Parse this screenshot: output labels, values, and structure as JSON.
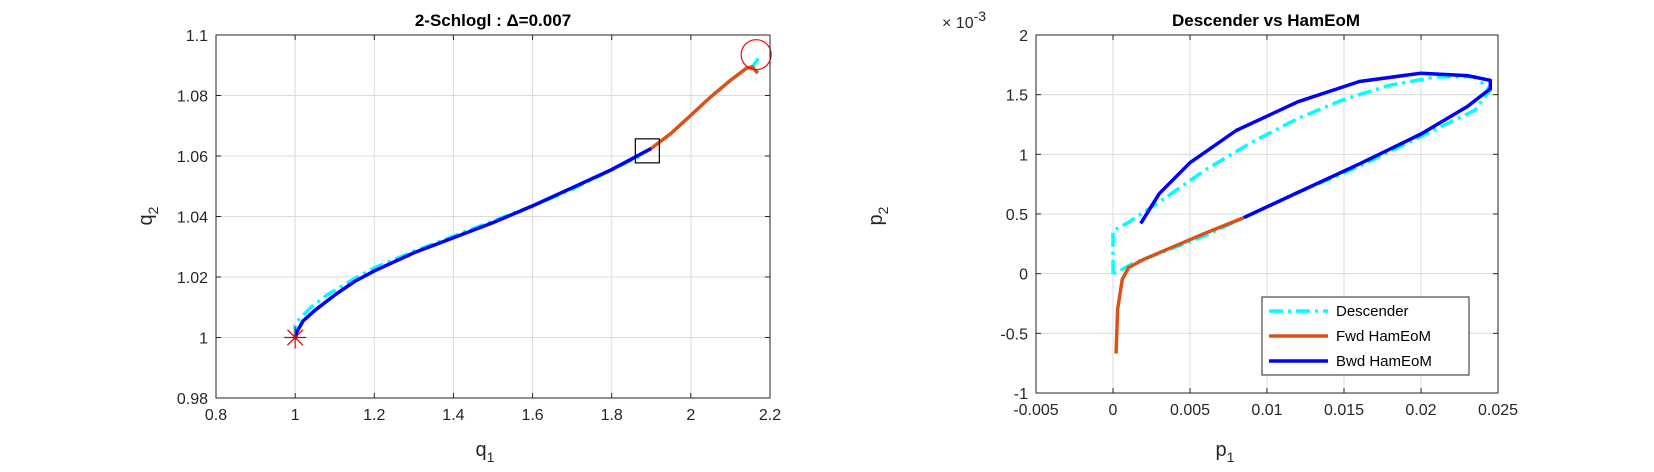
{
  "chart_data": [
    {
      "type": "line",
      "title": "2-Schlogl : Δ=0.007",
      "xlabel": "q",
      "xlabel_sub": "1",
      "ylabel": "q",
      "ylabel_sub": "2",
      "xlim": [
        0.8,
        2.2
      ],
      "ylim": [
        0.98,
        1.1
      ],
      "xticks": [
        0.8,
        1,
        1.2,
        1.4,
        1.6,
        1.8,
        2,
        2.2
      ],
      "xtick_labels": [
        "0.8",
        "1",
        "1.2",
        "1.4",
        "1.6",
        "1.8",
        "2",
        "2.2"
      ],
      "yticks": [
        0.98,
        1,
        1.02,
        1.04,
        1.06,
        1.08,
        1.1
      ],
      "ytick_labels": [
        "0.98",
        "1",
        "1.02",
        "1.04",
        "1.06",
        "1.08",
        "1.1"
      ],
      "grid": true,
      "series": [
        {
          "color": "#00ffff",
          "dash": "dashdot",
          "x": [
            1.0,
            1.0,
            1.01,
            1.04,
            1.08,
            1.15,
            1.2,
            1.3,
            1.4,
            1.5,
            1.6,
            1.7,
            1.8,
            1.88
          ],
          "y": [
            0.9995,
            1.004,
            1.006,
            1.01,
            1.014,
            1.0195,
            1.023,
            1.0285,
            1.0335,
            1.0385,
            1.0435,
            1.049,
            1.0555,
            1.0605
          ]
        },
        {
          "color": "#00ffff",
          "dash": "dashdot",
          "x": [
            2.15,
            2.175
          ],
          "y": [
            1.0885,
            1.093
          ]
        },
        {
          "color": "#d95319",
          "dash": "solid",
          "x": [
            1.9,
            1.95,
            2.0,
            2.05,
            2.1,
            2.14,
            2.155,
            2.165,
            2.17
          ],
          "y": [
            1.0625,
            1.0675,
            1.0735,
            1.0795,
            1.085,
            1.089,
            1.0895,
            1.088,
            1.0875
          ]
        },
        {
          "color": "#0000ff",
          "dash": "solid",
          "x": [
            1.0,
            1.005,
            1.02,
            1.05,
            1.1,
            1.15,
            1.2,
            1.3,
            1.4,
            1.5,
            1.6,
            1.7,
            1.8,
            1.9
          ],
          "y": [
            0.9995,
            1.002,
            1.0055,
            1.009,
            1.014,
            1.0185,
            1.022,
            1.028,
            1.033,
            1.038,
            1.0435,
            1.0495,
            1.0555,
            1.0625
          ]
        }
      ],
      "markers": [
        {
          "kind": "asterisk",
          "x": 1.0,
          "y": 1.0,
          "color": "#d40000"
        },
        {
          "kind": "square",
          "x": 1.89,
          "y": 1.0617,
          "color": "#000000"
        },
        {
          "kind": "circle",
          "x": 2.165,
          "y": 1.0935,
          "color": "#ff0000"
        }
      ]
    },
    {
      "type": "line",
      "title": "Descender vs HamEoM",
      "xlabel": "p",
      "xlabel_sub": "1",
      "ylabel": "p",
      "ylabel_sub": "2",
      "xlim": [
        -0.005,
        0.025
      ],
      "ylim": [
        -1,
        2
      ],
      "y_exponent_base": "× 10",
      "y_exponent": "-3",
      "xticks": [
        -0.005,
        0,
        0.005,
        0.01,
        0.015,
        0.02,
        0.025
      ],
      "xtick_labels": [
        "-0.005",
        "0",
        "0.005",
        "0.01",
        "0.015",
        "0.02",
        "0.025"
      ],
      "yticks": [
        -1,
        -0.5,
        0,
        0.5,
        1,
        1.5,
        2
      ],
      "ytick_labels": [
        "-1",
        "-0.5",
        "0",
        "0.5",
        "1",
        "1.5",
        "2"
      ],
      "grid": true,
      "legend_position": "bottom-right",
      "series": [
        {
          "name": "Descender",
          "color": "#00ffff",
          "dash": "dashdot",
          "x": [
            0.0,
            0.0,
            0.001,
            0.003,
            0.006,
            0.009,
            0.012,
            0.015,
            0.018,
            0.021,
            0.0235,
            0.0245,
            0.0235,
            0.02,
            0.016,
            0.012,
            0.0085,
            0.006,
            0.003,
            0.0012,
            0.0005,
            0.0,
            0.0
          ],
          "y": [
            0.0,
            0.36,
            0.43,
            0.6,
            0.87,
            1.1,
            1.3,
            1.46,
            1.58,
            1.65,
            1.65,
            1.54,
            1.37,
            1.15,
            0.9,
            0.68,
            0.47,
            0.32,
            0.17,
            0.08,
            0.03,
            0.0,
            0.0
          ]
        },
        {
          "name": "Fwd HamEoM",
          "color": "#d95319",
          "dash": "solid",
          "x": [
            0.0002,
            0.0003,
            0.0006,
            0.001,
            0.002,
            0.004,
            0.006,
            0.0085
          ],
          "y": [
            -0.67,
            -0.3,
            -0.05,
            0.05,
            0.12,
            0.23,
            0.34,
            0.47
          ]
        },
        {
          "name": "Bwd HamEoM",
          "color": "#0000ff",
          "dash": "solid",
          "x": [
            0.0085,
            0.012,
            0.016,
            0.02,
            0.023,
            0.0245,
            0.0245,
            0.023,
            0.02,
            0.016,
            0.012,
            0.008,
            0.005,
            0.003,
            0.0018
          ],
          "y": [
            0.47,
            0.68,
            0.92,
            1.17,
            1.4,
            1.55,
            1.62,
            1.66,
            1.68,
            1.61,
            1.44,
            1.2,
            0.93,
            0.67,
            0.42
          ]
        }
      ]
    }
  ]
}
